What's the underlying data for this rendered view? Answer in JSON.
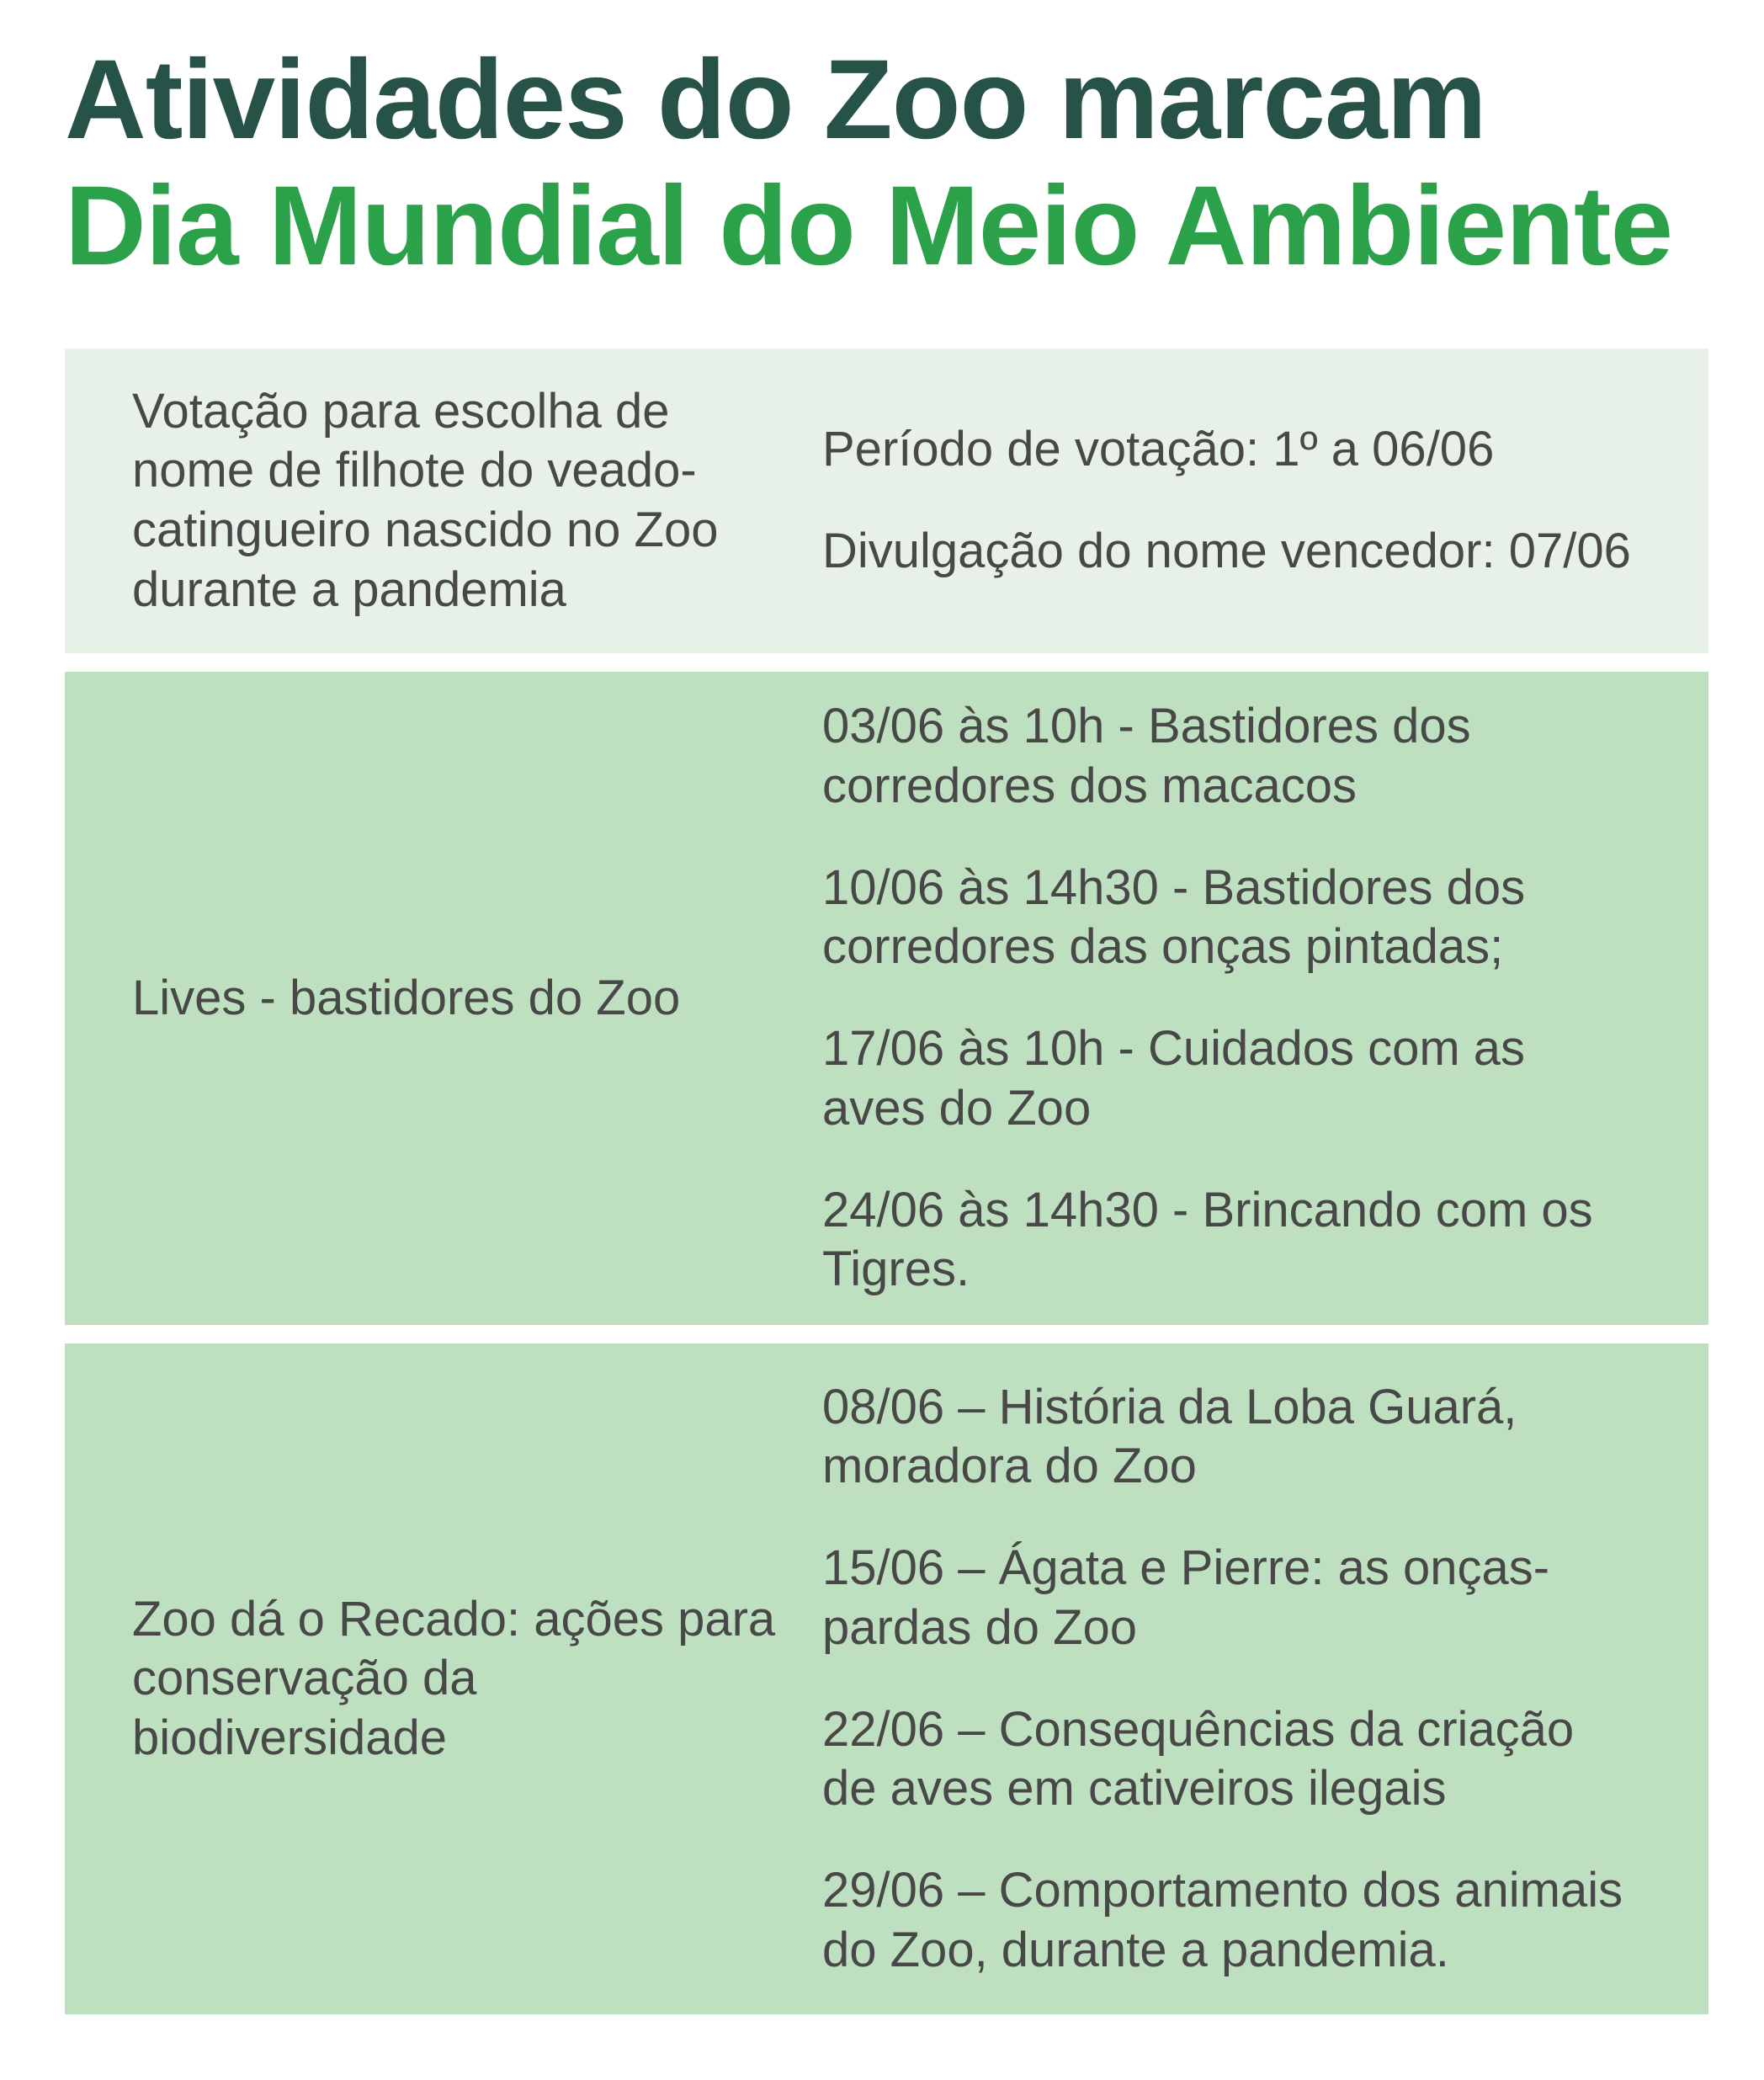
{
  "title": {
    "line1": "Atividades do Zoo marcam",
    "line2": "Dia Mundial do Meio Ambiente"
  },
  "colors": {
    "title_primary": "#275247",
    "title_accent": "#2ba14a",
    "section_light_bg": "#e7f1e8",
    "section_green_bg": "#bee0c0",
    "body_text": "#484848"
  },
  "sections": [
    {
      "heading": "Votação para escolha de\nnome de filhote do veado-\ncatingueiro nascido no Zoo\ndurante a pandemia",
      "items": [
        "Período de votação: 1º a 06/06",
        "Divulgação do nome vencedor: 07/06"
      ]
    },
    {
      "heading": "Lives - bastidores do Zoo",
      "items": [
        "03/06 às 10h - Bastidores dos\ncorredores dos macacos",
        "10/06 às 14h30 - Bastidores dos\ncorredores das onças pintadas;",
        "17/06 às 10h - Cuidados com as\naves do Zoo",
        "24/06 às 14h30 - Brincando com os\nTigres."
      ]
    },
    {
      "heading": "Zoo dá o Recado: ações para\nconservação da\nbiodiversidade",
      "items": [
        "08/06 – História da Loba Guará,\nmoradora do Zoo",
        "15/06 – Ágata e Pierre: as onças-\npardas do Zoo",
        "22/06 – Consequências da criação\nde aves em cativeiros ilegais",
        "29/06 – Comportamento dos animais\ndo Zoo, durante a pandemia."
      ]
    }
  ]
}
